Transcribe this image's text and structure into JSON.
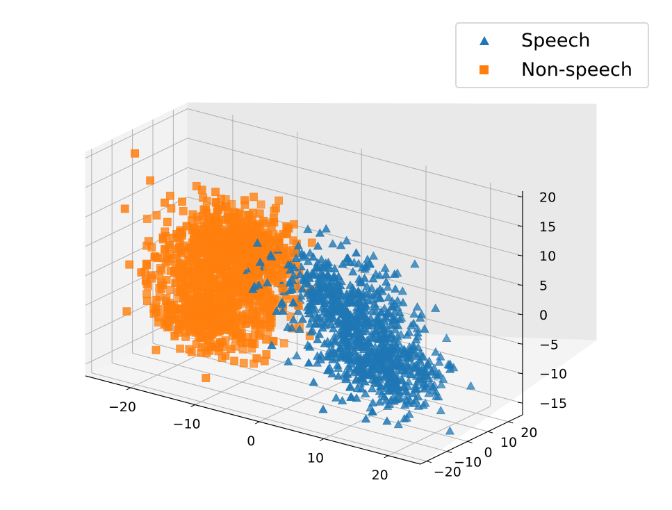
{
  "chart_data": {
    "type": "scatter",
    "projection": "3d",
    "title": "",
    "xlabel": "",
    "ylabel": "",
    "zlabel": "",
    "grid": true,
    "legend_position": "top-right",
    "x_ticks": [
      "−20",
      "−10",
      "0",
      "10",
      "20"
    ],
    "y_ticks": [
      "−20",
      "−10",
      "0",
      "10",
      "20"
    ],
    "z_ticks": [
      "−15",
      "−10",
      "−5",
      "0",
      "5",
      "10",
      "15",
      "20"
    ],
    "xlim": [
      -27,
      25
    ],
    "ylim": [
      -23,
      27
    ],
    "zlim": [
      -17,
      21
    ],
    "series": [
      {
        "name": "Speech",
        "marker": "triangle",
        "color": "#1f77b4",
        "clusters": [
          {
            "center": [
              9,
              -3,
              -2
            ],
            "spread": [
              4.5,
              4.0,
              4.5
            ],
            "count": 420
          },
          {
            "center": [
              13,
              1,
              -9
            ],
            "spread": [
              4.0,
              4.5,
              3.0
            ],
            "count": 320
          },
          {
            "center": [
              6,
              -9,
              5
            ],
            "spread": [
              4.0,
              3.5,
              3.5
            ],
            "count": 200
          }
        ]
      },
      {
        "name": "Non-speech",
        "marker": "square",
        "color": "#ff7f0e",
        "clusters": [
          {
            "center": [
              -13,
              0,
              0
            ],
            "spread": [
              5.0,
              5.0,
              5.5
            ],
            "count": 650
          },
          {
            "center": [
              -8,
              -5,
              8
            ],
            "spread": [
              4.0,
              3.5,
              3.0
            ],
            "count": 280
          },
          {
            "center": [
              -17,
              4,
              -9
            ],
            "spread": [
              4.0,
              4.0,
              2.5
            ],
            "count": 250
          }
        ]
      }
    ]
  }
}
